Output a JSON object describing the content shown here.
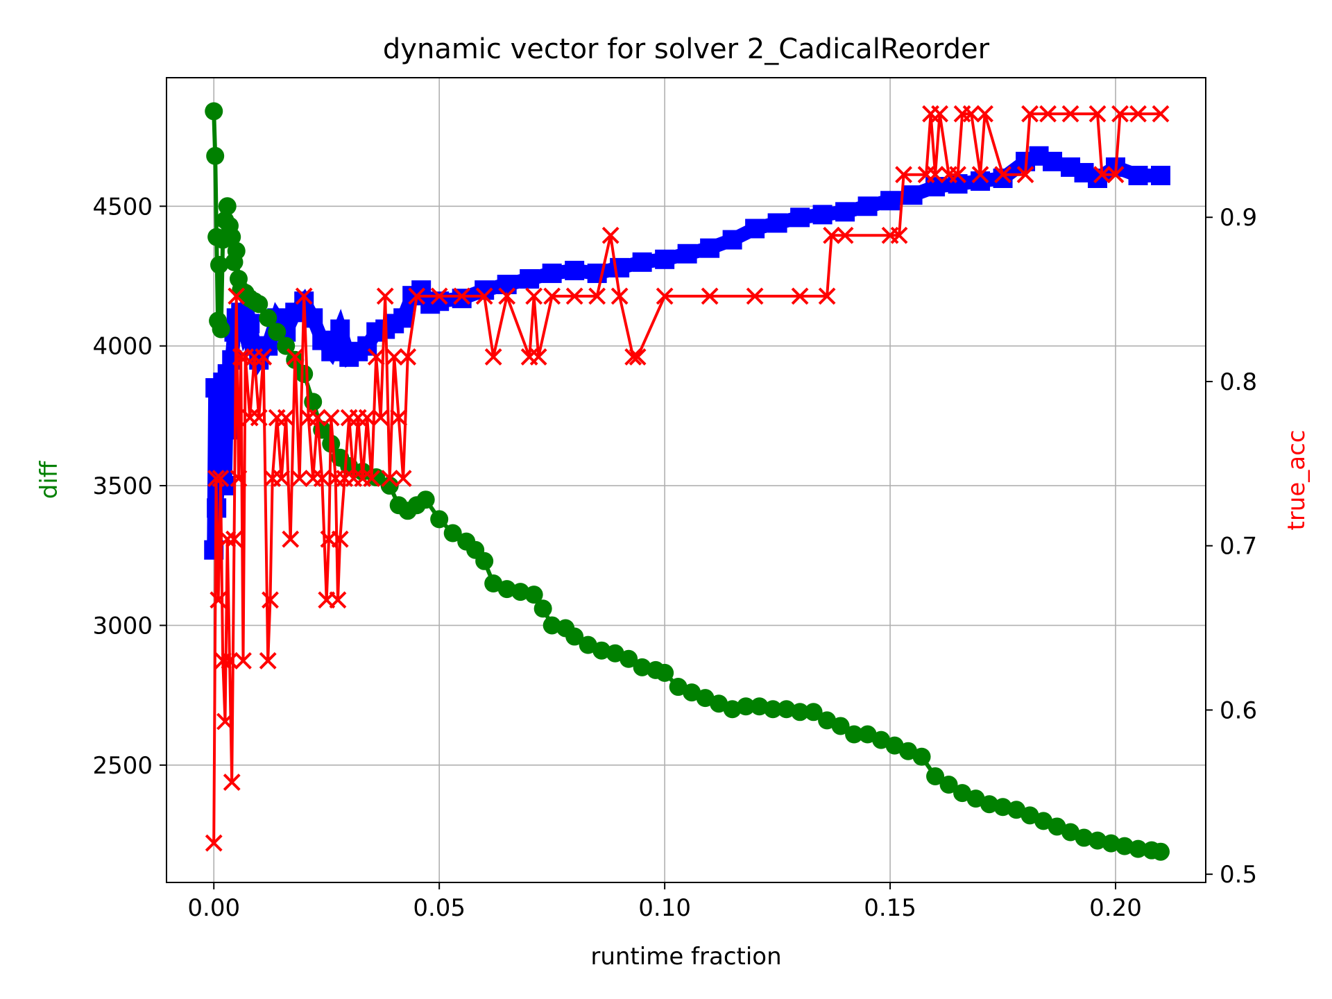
{
  "chart_data": {
    "type": "line",
    "title": "dynamic vector for solver 2_CadicalReorder",
    "xlabel": "runtime fraction",
    "ylabel_left": "diff",
    "ylabel_right": "true_acc",
    "xlim": [
      -0.0105,
      0.22
    ],
    "ylim_left": [
      2080,
      4960
    ],
    "ylim_right": [
      0.495,
      0.985
    ],
    "x_ticks": [
      0.0,
      0.05,
      0.1,
      0.15,
      0.2
    ],
    "x_tick_labels": [
      "0.00",
      "0.05",
      "0.10",
      "0.15",
      "0.20"
    ],
    "y_left_ticks": [
      2500,
      3000,
      3500,
      4000,
      4500
    ],
    "y_left_tick_labels": [
      "2500",
      "3000",
      "3500",
      "4000",
      "4500"
    ],
    "y_right_ticks": [
      0.5,
      0.6,
      0.7,
      0.8,
      0.9
    ],
    "y_right_tick_labels": [
      "0.5",
      "0.6",
      "0.7",
      "0.8",
      "0.9"
    ],
    "grid": true,
    "colors": {
      "diff": "#008000",
      "blue_series": "#0000ff",
      "true_acc": "#ff0000"
    },
    "series": [
      {
        "axis": "left",
        "marker": "circle",
        "color": "#008000",
        "x": [
          0.0,
          0.0003,
          0.0006,
          0.0009,
          0.0012,
          0.0016,
          0.002,
          0.0025,
          0.003,
          0.0035,
          0.004,
          0.0045,
          0.005,
          0.0055,
          0.006,
          0.007,
          0.008,
          0.009,
          0.01,
          0.012,
          0.014,
          0.016,
          0.018,
          0.02,
          0.022,
          0.024,
          0.026,
          0.028,
          0.03,
          0.033,
          0.036,
          0.039,
          0.041,
          0.043,
          0.045,
          0.047,
          0.05,
          0.053,
          0.056,
          0.058,
          0.06,
          0.062,
          0.065,
          0.068,
          0.071,
          0.073,
          0.075,
          0.078,
          0.08,
          0.083,
          0.086,
          0.089,
          0.092,
          0.095,
          0.098,
          0.1,
          0.103,
          0.106,
          0.109,
          0.112,
          0.115,
          0.118,
          0.121,
          0.124,
          0.127,
          0.13,
          0.133,
          0.136,
          0.139,
          0.142,
          0.145,
          0.148,
          0.151,
          0.154,
          0.157,
          0.16,
          0.163,
          0.166,
          0.169,
          0.172,
          0.175,
          0.178,
          0.181,
          0.184,
          0.187,
          0.19,
          0.193,
          0.196,
          0.199,
          0.202,
          0.205,
          0.208,
          0.21
        ],
        "values": [
          4840,
          4680,
          4390,
          4090,
          4290,
          4060,
          4380,
          4450,
          4500,
          4430,
          4390,
          4300,
          4340,
          4240,
          4200,
          4190,
          4170,
          4160,
          4150,
          4100,
          4050,
          4000,
          3950,
          3900,
          3800,
          3700,
          3650,
          3600,
          3570,
          3550,
          3530,
          3500,
          3430,
          3410,
          3430,
          3450,
          3380,
          3330,
          3300,
          3270,
          3230,
          3150,
          3130,
          3120,
          3110,
          3060,
          3000,
          2990,
          2960,
          2930,
          2910,
          2900,
          2880,
          2850,
          2840,
          2830,
          2780,
          2760,
          2740,
          2720,
          2700,
          2710,
          2710,
          2700,
          2700,
          2690,
          2690,
          2660,
          2640,
          2610,
          2610,
          2590,
          2570,
          2550,
          2530,
          2460,
          2430,
          2400,
          2380,
          2360,
          2350,
          2340,
          2320,
          2300,
          2280,
          2260,
          2240,
          2230,
          2220,
          2210,
          2200,
          2195,
          2190
        ]
      },
      {
        "axis": "left",
        "marker": "square",
        "color": "#0000ff",
        "x": [
          0.0,
          0.0003,
          0.0006,
          0.001,
          0.0015,
          0.002,
          0.0025,
          0.003,
          0.0035,
          0.004,
          0.0045,
          0.005,
          0.006,
          0.007,
          0.008,
          0.009,
          0.01,
          0.012,
          0.014,
          0.016,
          0.018,
          0.02,
          0.022,
          0.024,
          0.026,
          0.028,
          0.03,
          0.032,
          0.034,
          0.036,
          0.038,
          0.04,
          0.042,
          0.044,
          0.046,
          0.048,
          0.05,
          0.055,
          0.06,
          0.065,
          0.07,
          0.075,
          0.08,
          0.085,
          0.09,
          0.095,
          0.1,
          0.105,
          0.11,
          0.115,
          0.12,
          0.125,
          0.13,
          0.135,
          0.14,
          0.145,
          0.15,
          0.155,
          0.16,
          0.165,
          0.17,
          0.175,
          0.18,
          0.183,
          0.186,
          0.19,
          0.193,
          0.196,
          0.2,
          0.205,
          0.21
        ],
        "values": [
          3270,
          3850,
          3420,
          3550,
          3700,
          3870,
          3500,
          3900,
          3700,
          3950,
          4050,
          4100,
          4120,
          4050,
          4080,
          4000,
          3950,
          4000,
          4100,
          4050,
          4120,
          4160,
          4100,
          4020,
          3980,
          4060,
          3960,
          3980,
          4000,
          4050,
          4060,
          4080,
          4100,
          4180,
          4200,
          4150,
          4160,
          4170,
          4200,
          4220,
          4240,
          4260,
          4270,
          4260,
          4280,
          4300,
          4310,
          4330,
          4350,
          4380,
          4420,
          4440,
          4460,
          4470,
          4480,
          4500,
          4520,
          4540,
          4570,
          4580,
          4590,
          4600,
          4660,
          4680,
          4660,
          4640,
          4620,
          4600,
          4640,
          4610,
          4610
        ]
      },
      {
        "axis": "right",
        "marker": "x",
        "color": "#ff0000",
        "x": [
          0.0,
          0.0005,
          0.001,
          0.0015,
          0.002,
          0.0025,
          0.003,
          0.0035,
          0.004,
          0.0045,
          0.005,
          0.0055,
          0.006,
          0.0065,
          0.007,
          0.008,
          0.009,
          0.01,
          0.011,
          0.012,
          0.0125,
          0.013,
          0.014,
          0.015,
          0.016,
          0.017,
          0.018,
          0.019,
          0.02,
          0.021,
          0.022,
          0.023,
          0.024,
          0.025,
          0.0255,
          0.026,
          0.027,
          0.0275,
          0.028,
          0.029,
          0.03,
          0.031,
          0.032,
          0.033,
          0.034,
          0.035,
          0.036,
          0.037,
          0.038,
          0.039,
          0.04,
          0.041,
          0.042,
          0.043,
          0.045,
          0.05,
          0.055,
          0.06,
          0.062,
          0.065,
          0.07,
          0.071,
          0.072,
          0.075,
          0.08,
          0.085,
          0.088,
          0.09,
          0.093,
          0.094,
          0.1,
          0.11,
          0.12,
          0.13,
          0.136,
          0.137,
          0.14,
          0.15,
          0.152,
          0.153,
          0.158,
          0.159,
          0.16,
          0.161,
          0.163,
          0.165,
          0.166,
          0.168,
          0.17,
          0.171,
          0.175,
          0.18,
          0.181,
          0.185,
          0.19,
          0.196,
          0.197,
          0.2,
          0.201,
          0.205,
          0.21
        ],
        "values": [
          0.519,
          0.741,
          0.667,
          0.741,
          0.63,
          0.593,
          0.704,
          0.63,
          0.556,
          0.704,
          0.852,
          0.741,
          0.815,
          0.63,
          0.815,
          0.778,
          0.815,
          0.778,
          0.815,
          0.63,
          0.667,
          0.741,
          0.778,
          0.741,
          0.778,
          0.704,
          0.815,
          0.741,
          0.852,
          0.778,
          0.741,
          0.778,
          0.741,
          0.667,
          0.704,
          0.778,
          0.741,
          0.667,
          0.704,
          0.741,
          0.778,
          0.741,
          0.778,
          0.741,
          0.778,
          0.741,
          0.815,
          0.778,
          0.852,
          0.741,
          0.815,
          0.778,
          0.741,
          0.815,
          0.852,
          0.852,
          0.852,
          0.852,
          0.815,
          0.852,
          0.815,
          0.852,
          0.815,
          0.852,
          0.852,
          0.852,
          0.889,
          0.852,
          0.815,
          0.815,
          0.852,
          0.852,
          0.852,
          0.852,
          0.852,
          0.889,
          0.889,
          0.889,
          0.889,
          0.926,
          0.926,
          0.963,
          0.926,
          0.963,
          0.926,
          0.926,
          0.963,
          0.963,
          0.926,
          0.963,
          0.926,
          0.926,
          0.963,
          0.963,
          0.963,
          0.963,
          0.926,
          0.926,
          0.963,
          0.963,
          0.963
        ]
      }
    ]
  }
}
